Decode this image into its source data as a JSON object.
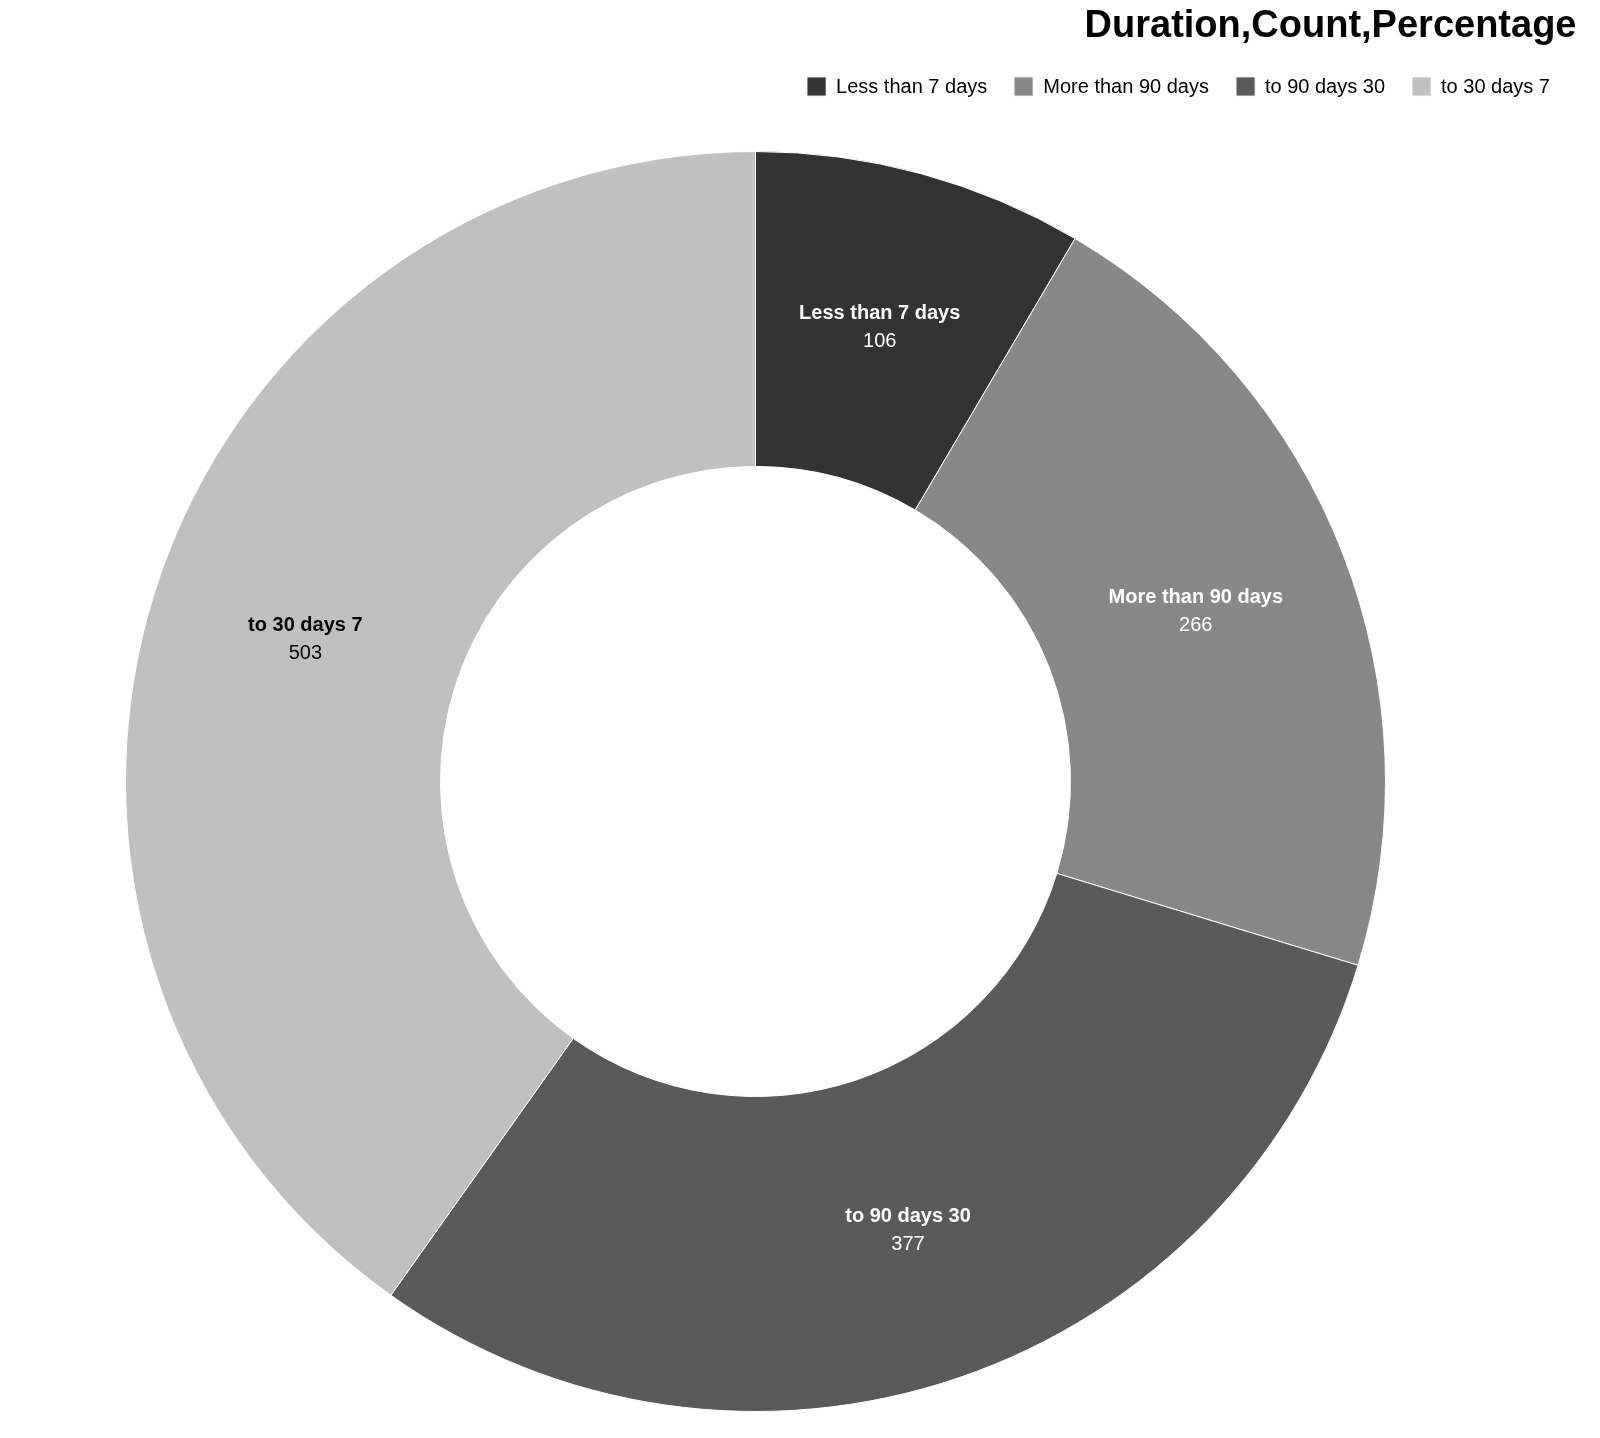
{
  "chart_data": {
    "type": "donut",
    "title": "Duration,Count,Percentage",
    "categories": [
      "Less than 7 days",
      "More than 90 days",
      "to 90 days 30",
      "to 30 days 7"
    ],
    "values": [
      106,
      266,
      377,
      503
    ],
    "colors": [
      "#333333",
      "#888888",
      "#5a5a5a",
      "#c0c0c0"
    ],
    "data_labels": true,
    "legend": "top right"
  }
}
